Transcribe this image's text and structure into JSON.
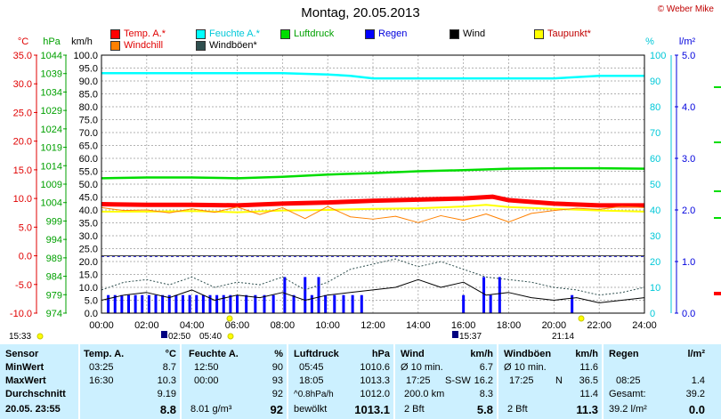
{
  "header": {
    "title": "Montag, 20.05.2013",
    "copyright": "© Weber Mike"
  },
  "legend": [
    {
      "label": "Temp. A.*",
      "color": "#ff0000",
      "labelColor": "#e00000"
    },
    {
      "label": "Feuchte A.*",
      "color": "#00ffff",
      "labelColor": "#00c8d8"
    },
    {
      "label": "Luftdruck",
      "color": "#00dd00",
      "labelColor": "#00a000"
    },
    {
      "label": "Regen",
      "color": "#0000ff",
      "labelColor": "#0000dd"
    },
    {
      "label": "Wind",
      "color": "#000000",
      "labelColor": "#000000"
    },
    {
      "label": "Taupunkt*",
      "color": "#ffff00",
      "labelColor": "#c00000"
    },
    {
      "label": "Windchill",
      "color": "#ff8000",
      "labelColor": "#e00000"
    },
    {
      "label": "Windböen*",
      "color": "#2f4f4f",
      "labelColor": "#000000"
    }
  ],
  "axes_units": {
    "celsius": "°C",
    "hpa": "hPa",
    "kmh": "km/h",
    "percent": "%",
    "lm2": "l/m²"
  },
  "chart_data": {
    "type": "line",
    "x_label": "",
    "x_ticks": [
      "00:00",
      "02:00",
      "04:00",
      "06:00",
      "08:00",
      "10:00",
      "12:00",
      "14:00",
      "16:00",
      "18:00",
      "20:00",
      "22:00",
      "24:00"
    ],
    "axes": {
      "celsius": {
        "ticks": [
          "35.0",
          "30.0",
          "25.0",
          "20.0",
          "15.0",
          "10.0",
          "5.0",
          "0.0",
          "-5.0",
          "-10.0"
        ],
        "range": [
          -10,
          35
        ],
        "color": "#e00000"
      },
      "hpa": {
        "ticks": [
          "1044",
          "1039",
          "1034",
          "1029",
          "1024",
          "1019",
          "1014",
          "1009",
          "1004",
          "999",
          "994",
          "989",
          "984",
          "979",
          "974"
        ],
        "range": [
          974,
          1044
        ],
        "color": "#00a000"
      },
      "kmh": {
        "ticks": [
          "100.0",
          "95.0",
          "90.0",
          "85.0",
          "80.0",
          "75.0",
          "70.0",
          "65.0",
          "60.0",
          "55.0",
          "50.0",
          "45.0",
          "40.0",
          "35.0",
          "30.0",
          "25.0",
          "20.0",
          "15.0",
          "10.0",
          "5.0",
          "0.0"
        ],
        "range": [
          0,
          100
        ],
        "color": "#000000"
      },
      "percent": {
        "ticks": [
          "100",
          "90",
          "80",
          "70",
          "60",
          "50",
          "40",
          "30",
          "20",
          "10",
          "0"
        ],
        "range": [
          0,
          100
        ],
        "color": "#00c8d8"
      },
      "lm2": {
        "ticks": [
          "5.0",
          "4.0",
          "3.0",
          "2.0",
          "1.0",
          "0.0"
        ],
        "range": [
          0,
          5
        ],
        "color": "#0000dd"
      }
    },
    "series": [
      {
        "name": "Temp. A.*",
        "axis": "celsius",
        "color": "#ff0000",
        "width": 5,
        "x": [
          0,
          2,
          4,
          6,
          8,
          10,
          12,
          14,
          16,
          17.3,
          18,
          20,
          22,
          24
        ],
        "y": [
          9.0,
          8.9,
          8.9,
          8.8,
          9.1,
          9.3,
          9.6,
          9.8,
          10.0,
          10.3,
          9.7,
          9.1,
          8.8,
          8.8
        ]
      },
      {
        "name": "Feuchte A.*",
        "axis": "percent",
        "color": "#00ffff",
        "width": 2.5,
        "x": [
          0,
          2,
          4,
          6,
          8,
          10,
          11,
          12,
          13,
          14,
          16,
          18,
          19,
          20,
          22,
          23,
          24
        ],
        "y": [
          93,
          93,
          93,
          93,
          93,
          92.5,
          92,
          91,
          91,
          91,
          91,
          91,
          91,
          91,
          92,
          92,
          92
        ]
      },
      {
        "name": "Luftdruck",
        "axis": "hpa",
        "color": "#00dd00",
        "width": 2.5,
        "x": [
          0,
          2,
          4,
          6,
          8,
          10,
          12,
          14,
          16,
          18,
          20,
          22,
          24
        ],
        "y": [
          1010.6,
          1010.8,
          1010.8,
          1010.6,
          1011.0,
          1011.6,
          1012.0,
          1012.5,
          1012.8,
          1013.2,
          1013.3,
          1013.3,
          1013.2
        ]
      },
      {
        "name": "Taupunkt*",
        "axis": "celsius",
        "color": "#ffff00",
        "width": 2,
        "x": [
          0,
          2,
          4,
          6,
          8,
          10,
          12,
          14,
          16,
          17,
          18,
          20,
          22,
          24
        ],
        "y": [
          7.7,
          7.7,
          7.8,
          7.6,
          7.9,
          8.0,
          8.2,
          8.3,
          8.6,
          8.9,
          8.5,
          8.2,
          7.9,
          7.7
        ]
      },
      {
        "name": "Windchill",
        "axis": "celsius",
        "color": "#ff8000",
        "width": 1,
        "x": [
          0,
          1,
          2,
          3,
          4,
          5,
          6,
          7,
          8,
          9,
          10,
          11,
          12,
          13,
          14,
          15,
          16,
          17,
          18,
          19,
          20,
          21,
          22,
          23,
          24
        ],
        "y": [
          8.4,
          7.9,
          8.0,
          7.5,
          8.2,
          7.6,
          8.5,
          7.2,
          8.4,
          6.5,
          8.6,
          6.8,
          6.4,
          6.9,
          5.8,
          7.0,
          6.2,
          7.3,
          5.9,
          7.4,
          7.9,
          8.3,
          8.1,
          8.6,
          8.4
        ]
      },
      {
        "name": "Wind",
        "axis": "kmh",
        "color": "#000000",
        "width": 1,
        "x": [
          0,
          1,
          2,
          3,
          4,
          5,
          6,
          7,
          8,
          9,
          10,
          11,
          12,
          13,
          14,
          15,
          16,
          17,
          18,
          19,
          20,
          21,
          22,
          23,
          24
        ],
        "y": [
          5,
          7,
          8,
          6,
          9,
          5,
          7,
          6,
          8,
          5,
          7,
          8,
          9,
          10,
          13,
          10,
          12,
          7,
          8,
          6,
          5,
          6,
          4,
          5,
          6
        ]
      },
      {
        "name": "Windböen*",
        "axis": "kmh",
        "color": "#2f4f4f",
        "width": 1,
        "dashed": true,
        "x": [
          0,
          1,
          2,
          3,
          4,
          5,
          6,
          7,
          8,
          9,
          10,
          11,
          12,
          13,
          14,
          15,
          16,
          17,
          18,
          19,
          20,
          21,
          22,
          23,
          24
        ],
        "y": [
          9,
          12,
          13,
          11,
          14,
          10,
          12,
          11,
          14,
          9,
          12,
          17,
          19,
          21,
          18,
          20,
          17,
          14,
          13,
          12,
          10,
          9,
          7,
          8,
          10
        ]
      }
    ],
    "rain_bars": {
      "name": "Regen",
      "axis": "lm2",
      "color": "#0000ff",
      "x": [
        0.3,
        0.6,
        0.9,
        1.2,
        1.5,
        1.8,
        2.1,
        2.4,
        2.7,
        3.0,
        3.3,
        3.6,
        3.9,
        4.2,
        4.5,
        4.8,
        5.1,
        5.4,
        5.7,
        6.0,
        6.4,
        6.8,
        7.2,
        7.6,
        8.1,
        8.5,
        9.0,
        9.3,
        9.6,
        9.9,
        10.3,
        10.7,
        11.1,
        11.5,
        16.0,
        16.9,
        17.2,
        17.6,
        20.8
      ],
      "y": [
        0.35,
        0.35,
        0.35,
        0.35,
        0.35,
        0.35,
        0.35,
        0.35,
        0.35,
        0.35,
        0.35,
        0.35,
        0.35,
        0.35,
        0.35,
        0.35,
        0.35,
        0.35,
        0.35,
        0.35,
        0.35,
        0.35,
        0.35,
        0.35,
        0.7,
        0.35,
        0.7,
        0.35,
        0.7,
        0.35,
        0.35,
        0.35,
        0.35,
        0.35,
        0.35,
        0.7,
        0.35,
        0.7,
        0.35
      ]
    },
    "blue_dashed_ref": {
      "axis": "lm2",
      "y": 1.1
    },
    "dark_lines": [
      {
        "axis": "celsius",
        "y": 0
      }
    ],
    "grid": true
  },
  "events": {
    "sunrise": "05:40",
    "sunset": "21:14",
    "moonrise_label": "02:50",
    "moonset_label": "15:37",
    "left_time": "15:33"
  },
  "stats": {
    "sensor": {
      "header": "Sensor",
      "rows": [
        "MinWert",
        "MaxWert",
        "Durchschnitt"
      ],
      "date": "20.05. 23:55"
    },
    "temp": {
      "header": "Temp. A.",
      "unit": "°C",
      "r1t": "03:25",
      "r1v": "8.7",
      "r2t": "16:30",
      "r2v": "10.3",
      "r3v": "9.19",
      "cur": "8.8"
    },
    "feuchte": {
      "header": "Feuchte A.",
      "unit": "%",
      "r1t": "12:50",
      "r1v": "90",
      "r2t": "00:00",
      "r2v": "93",
      "r3v": "92",
      "curt": "8.01 g/m³",
      "cur": "92"
    },
    "druck": {
      "header": "Luftdruck",
      "unit": "hPa",
      "r1t": "05:45",
      "r1v": "1010.6",
      "r2t": "18:05",
      "r2v": "1013.3",
      "r3t": "^0.8hPa/h",
      "r3v": "1012.0",
      "curt": "bewölkt",
      "cur": "1013.1"
    },
    "wind": {
      "header": "Wind",
      "unit": "km/h",
      "r1t": "Ø 10 min.",
      "r1v": "6.7",
      "r2t": "17:25",
      "r2m": "S-SW",
      "r2v": "16.2",
      "r3t": "200.0 km",
      "r3v": "8.3",
      "curt": "2 Bft",
      "cur": "5.8"
    },
    "boeen": {
      "header": "Windböen",
      "unit": "km/h",
      "r1t": "Ø 10 min.",
      "r1v": "11.6",
      "r2t": "17:25",
      "r2m": "N",
      "r2v": "36.5",
      "r3v": "11.4",
      "curt": "2 Bft",
      "cur": "11.3"
    },
    "regen": {
      "header": "Regen",
      "unit": "l/m²",
      "r2t": "08:25",
      "r2v": "1.4",
      "r3t": "Gesamt:",
      "r3v": "39.2",
      "curt": "39.2 l/m²",
      "cur": "0.0"
    }
  }
}
